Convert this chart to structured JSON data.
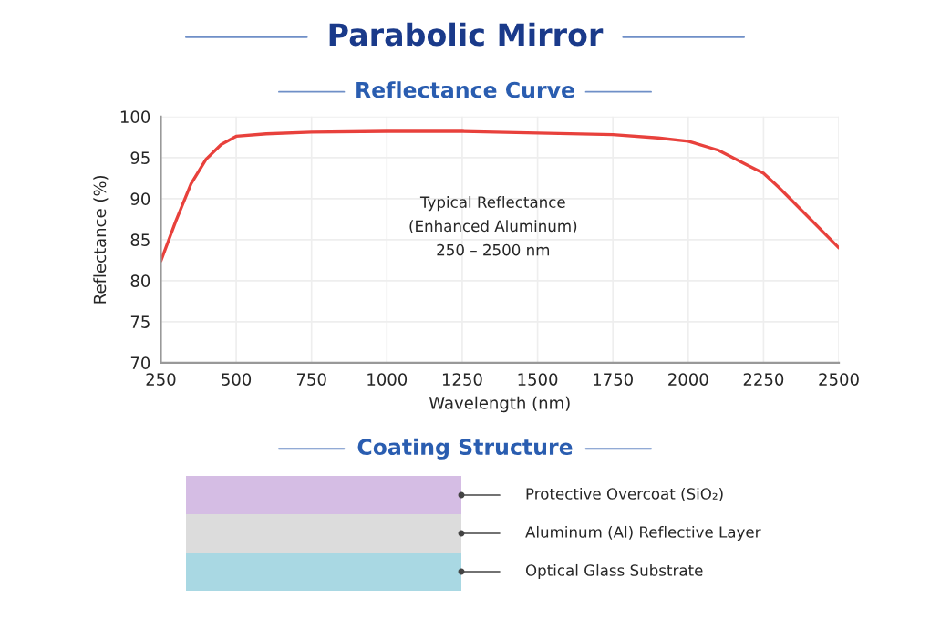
{
  "chart_data": {
    "type": "line",
    "title": "Parabolic Mirror",
    "subtitle": "Reflectance Curve",
    "xlabel": "Wavelength (nm)",
    "ylabel": "Reflectance (%)",
    "x": [
      250,
      300,
      350,
      400,
      450,
      500,
      600,
      750,
      1000,
      1250,
      1500,
      1750,
      1900,
      2000,
      2100,
      2200,
      2250,
      2300,
      2400,
      2500
    ],
    "series": [
      {
        "color": "#e8413c",
        "values": [
          82.4,
          87.3,
          91.8,
          94.8,
          96.6,
          97.6,
          97.9,
          98.1,
          98.2,
          98.2,
          98.0,
          97.8,
          97.4,
          97.0,
          95.9,
          94.0,
          93.1,
          91.4,
          87.7,
          84.0
        ]
      }
    ],
    "xlim": [
      250,
      2500
    ],
    "ylim": [
      70,
      100
    ],
    "xticks": [
      250,
      500,
      750,
      1000,
      1250,
      1500,
      1750,
      2000,
      2250,
      2500
    ],
    "yticks": [
      70,
      75,
      80,
      85,
      90,
      95,
      100
    ],
    "grid": true,
    "marker": "none",
    "line_style": "solid",
    "annotations": [
      "Typical Reflectance\n(Enhanced Aluminum)\n250 – 2500 nm",
      "Coating Structure",
      "Protective Overcoat (SiO₂)",
      "Aluminum (Al) Reflective Layer",
      "Optical Glass Substrate"
    ]
  }
}
